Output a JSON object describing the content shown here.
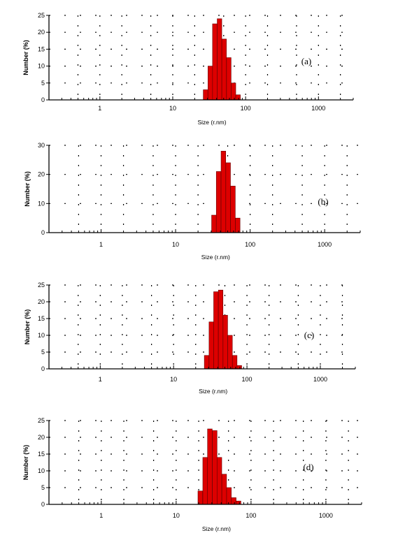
{
  "chart_data": [
    {
      "type": "bar",
      "panel_label": "(a)",
      "xlabel": "Size (r.nm)",
      "ylabel": "Number (%)",
      "xscale": "log",
      "xlim": [
        0.2,
        3000
      ],
      "ylim": [
        0,
        25
      ],
      "yticks": [
        0,
        5,
        10,
        15,
        20,
        25
      ],
      "xticks": [
        1,
        10,
        100,
        1000
      ],
      "xticklabels": [
        "1",
        "10",
        "100",
        "1000"
      ],
      "grid": true,
      "bins": [
        {
          "x": 28.2,
          "y": 3
        },
        {
          "x": 32.7,
          "y": 10
        },
        {
          "x": 37.8,
          "y": 22.5
        },
        {
          "x": 43.8,
          "y": 24
        },
        {
          "x": 50.7,
          "y": 18
        },
        {
          "x": 58.8,
          "y": 12.5
        },
        {
          "x": 68.1,
          "y": 5
        },
        {
          "x": 78.8,
          "y": 1.5
        }
      ]
    },
    {
      "type": "bar",
      "panel_label": "(b)",
      "xlabel": "Size (r.nm)",
      "ylabel": "Number (%)",
      "xscale": "log",
      "xlim": [
        0.2,
        3000
      ],
      "ylim": [
        0,
        30
      ],
      "yticks": [
        0,
        10,
        20,
        30
      ],
      "xticks": [
        1,
        10,
        100,
        1000
      ],
      "xticklabels": [
        "1",
        "10",
        "100",
        "1000"
      ],
      "grid": true,
      "bins": [
        {
          "x": 32.7,
          "y": 6
        },
        {
          "x": 37.8,
          "y": 21
        },
        {
          "x": 43.8,
          "y": 28
        },
        {
          "x": 50.7,
          "y": 24
        },
        {
          "x": 58.8,
          "y": 16
        },
        {
          "x": 68.1,
          "y": 5
        }
      ]
    },
    {
      "type": "bar",
      "panel_label": "(c)",
      "xlabel": "Size (r.nm)",
      "ylabel": "Number (%)",
      "xscale": "log",
      "xlim": [
        0.2,
        3000
      ],
      "ylim": [
        0,
        25
      ],
      "yticks": [
        0,
        5,
        10,
        15,
        20,
        25
      ],
      "xticks": [
        1,
        10,
        100,
        1000
      ],
      "xticklabels": [
        "1",
        "10",
        "100",
        "1000"
      ],
      "grid": true,
      "bins": [
        {
          "x": 28.2,
          "y": 4
        },
        {
          "x": 32.7,
          "y": 14
        },
        {
          "x": 37.8,
          "y": 23
        },
        {
          "x": 43.8,
          "y": 23.5
        },
        {
          "x": 50.7,
          "y": 16
        },
        {
          "x": 58.8,
          "y": 10
        },
        {
          "x": 68.1,
          "y": 4
        },
        {
          "x": 78.8,
          "y": 1
        }
      ]
    },
    {
      "type": "bar",
      "panel_label": "(d)",
      "xlabel": "Size (r.nm)",
      "ylabel": "Number (%)",
      "xscale": "log",
      "xlim": [
        0.2,
        3000
      ],
      "ylim": [
        0,
        25
      ],
      "yticks": [
        0,
        5,
        10,
        15,
        20,
        25
      ],
      "xticks": [
        1,
        10,
        100,
        1000
      ],
      "xticklabels": [
        "1",
        "10",
        "100",
        "1000"
      ],
      "grid": true,
      "bins": [
        {
          "x": 21.0,
          "y": 4
        },
        {
          "x": 24.4,
          "y": 14
        },
        {
          "x": 28.2,
          "y": 22.5
        },
        {
          "x": 32.7,
          "y": 22
        },
        {
          "x": 37.8,
          "y": 14
        },
        {
          "x": 43.8,
          "y": 9
        },
        {
          "x": 50.7,
          "y": 5
        },
        {
          "x": 58.8,
          "y": 2
        },
        {
          "x": 68.1,
          "y": 1
        }
      ]
    }
  ],
  "colors": {
    "bar_fill": "#dd0000",
    "bar_stroke": "#660000",
    "axis": "#000000",
    "grid": "#000000"
  }
}
